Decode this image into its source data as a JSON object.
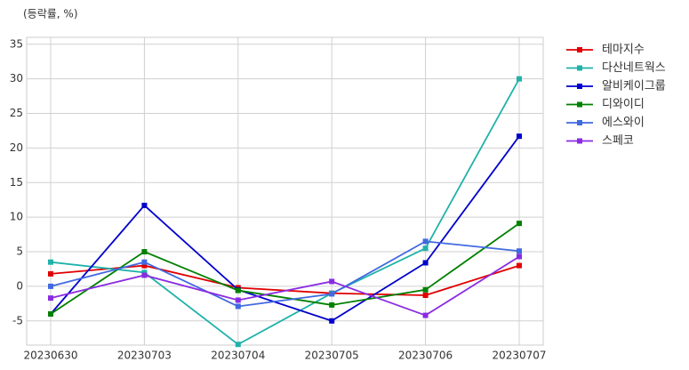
{
  "chart_data": {
    "type": "line",
    "subtitle": "(등락률, %)",
    "categories": [
      "20230630",
      "20230703",
      "20230704",
      "20230705",
      "20230706",
      "20230707"
    ],
    "series": [
      {
        "name": "테마지수",
        "color": "#e00000",
        "values": [
          1.8,
          3.0,
          -0.2,
          -1.0,
          -1.3,
          3.0
        ]
      },
      {
        "name": "다산네트웍스",
        "color": "#20b2aa",
        "values": [
          3.5,
          2.0,
          -8.4,
          -1.0,
          5.5,
          30.0
        ]
      },
      {
        "name": "알비케이그룹",
        "color": "#0000cd",
        "values": [
          -4.0,
          11.7,
          -0.5,
          -5.0,
          3.4,
          21.7
        ]
      },
      {
        "name": "디와이디",
        "color": "#008000",
        "values": [
          -4.0,
          5.0,
          -0.6,
          -2.7,
          -0.5,
          9.1
        ]
      },
      {
        "name": "에스와이",
        "color": "#4169e1",
        "values": [
          0.0,
          3.5,
          -2.9,
          -1.1,
          6.5,
          5.1
        ]
      },
      {
        "name": "스페코",
        "color": "#8a2be2",
        "values": [
          -1.7,
          1.6,
          -2.0,
          0.7,
          -4.2,
          4.3
        ]
      }
    ],
    "ylim": [
      -8.5,
      36
    ],
    "yticks": [
      -5,
      0,
      5,
      10,
      15,
      20,
      25,
      30,
      35
    ],
    "grid": true,
    "legend": "outside-right"
  }
}
